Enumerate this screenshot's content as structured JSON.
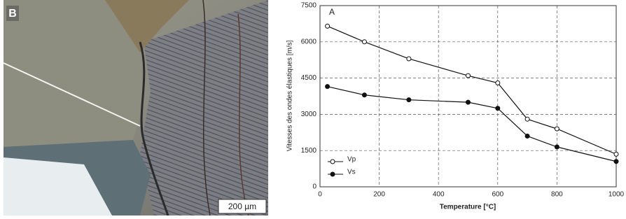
{
  "figure": {
    "panel_label": "B",
    "scale_bar": "200 µm"
  },
  "chart_data": {
    "type": "line",
    "panel_label": "A",
    "x_label": "Temperature [°C]",
    "y_label": "Vitesses des ondes élastiques [m/s]",
    "x": [
      25,
      150,
      300,
      500,
      600,
      700,
      800,
      1000
    ],
    "series": [
      {
        "name": "Vp",
        "color": "#111111",
        "marker": "open",
        "values": [
          6650,
          6000,
          5300,
          4600,
          4300,
          2800,
          2400,
          1350
        ]
      },
      {
        "name": "Vs",
        "color": "#111111",
        "marker": "filled",
        "values": [
          4150,
          3800,
          3600,
          3500,
          3250,
          2100,
          1650,
          1050
        ]
      }
    ],
    "xlim": [
      0,
      1000
    ],
    "xticks": [
      0,
      200,
      400,
      600,
      800,
      1000
    ],
    "ylim": [
      0,
      7500
    ],
    "yticks": [
      0,
      1500,
      3000,
      4500,
      6000,
      7500
    ],
    "grid": true,
    "legend": "lower left"
  }
}
